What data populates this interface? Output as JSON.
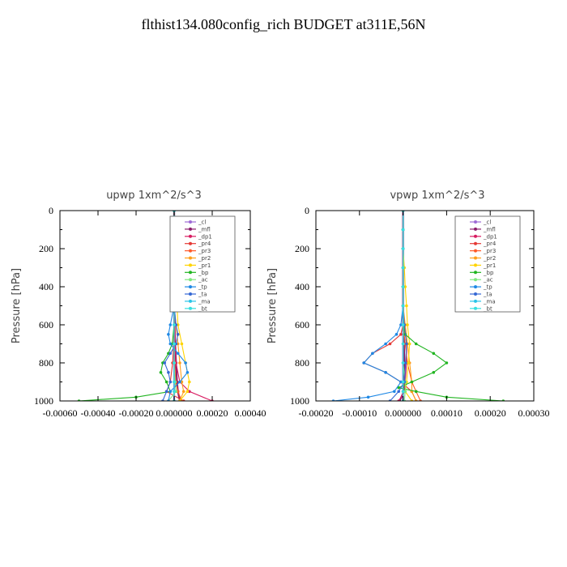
{
  "title": "flthist134.080config_rich  BUDGET at311E,56N",
  "chart_data": [
    {
      "type": "line",
      "title": "upwp   1xm^2/s^3",
      "ylabel": "Pressure [hPa]",
      "xlim": [
        -0.0006,
        0.0004
      ],
      "ylim": [
        1000,
        0
      ],
      "xticks": [
        -0.0006,
        -0.0004,
        -0.0002,
        0.0,
        0.0002,
        0.0004
      ],
      "xtick_labels": [
        "-0.00060",
        "-0.00040",
        "-0.00020",
        "0.000000",
        "0.00020",
        "0.00040"
      ],
      "yticks": [
        0,
        200,
        400,
        600,
        800,
        1000
      ],
      "ytick_labels": [
        "0",
        "200",
        "400",
        "600",
        "800",
        "1000"
      ],
      "legend_position": "top-right",
      "series": [
        {
          "name": "_cl",
          "color": "#9e6bd6",
          "p": [
            0,
            100,
            200,
            300,
            400,
            500,
            600,
            700,
            800,
            900,
            950,
            1000
          ],
          "values": [
            0,
            0,
            0,
            0,
            0,
            0,
            0,
            0,
            0,
            0,
            0,
            0
          ]
        },
        {
          "name": "_mfl",
          "color": "#8b1d6b",
          "p": [
            0,
            100,
            200,
            300,
            400,
            500,
            600,
            700,
            800,
            900,
            950,
            1000
          ],
          "values": [
            0,
            0,
            0,
            0,
            0,
            0,
            2e-06,
            5e-06,
            1e-05,
            1.5e-05,
            2e-05,
            3e-05
          ]
        },
        {
          "name": "_dp1",
          "color": "#d81b60",
          "p": [
            0,
            100,
            200,
            300,
            400,
            500,
            600,
            700,
            800,
            900,
            950,
            1000
          ],
          "values": [
            0,
            0,
            0,
            0,
            0,
            0,
            3e-06,
            5e-06,
            1e-05,
            3e-05,
            8e-05,
            0.0002
          ]
        },
        {
          "name": "_pr4",
          "color": "#e53935",
          "p": [
            0,
            100,
            200,
            300,
            400,
            500,
            600,
            700,
            800,
            900,
            950,
            1000
          ],
          "values": [
            0,
            0,
            0,
            0,
            0,
            0,
            0,
            -3e-06,
            -8e-06,
            -2e-05,
            -4e-05,
            5e-05
          ]
        },
        {
          "name": "_pr3",
          "color": "#ff5a2a",
          "p": [
            0,
            100,
            200,
            300,
            400,
            500,
            600,
            700,
            800,
            900,
            950,
            1000
          ],
          "values": [
            0,
            0,
            0,
            0,
            0,
            0,
            0,
            0,
            3e-06,
            8e-06,
            2e-05,
            4e-05
          ]
        },
        {
          "name": "_pr2",
          "color": "#ff9f1a",
          "p": [
            0,
            100,
            200,
            300,
            400,
            500,
            600,
            700,
            800,
            900,
            950,
            1000
          ],
          "values": [
            0,
            0,
            0,
            0,
            0,
            0,
            1e-05,
            2e-05,
            3e-05,
            4e-05,
            5e-05,
            3e-05
          ]
        },
        {
          "name": "_pr1",
          "color": "#ffd400",
          "p": [
            0,
            100,
            200,
            300,
            400,
            500,
            600,
            700,
            800,
            900,
            950,
            1000
          ],
          "values": [
            0,
            0,
            3e-06,
            5e-06,
            1e-05,
            1.5e-05,
            2e-05,
            4e-05,
            6e-05,
            8e-05,
            7e-05,
            3e-05
          ]
        },
        {
          "name": "_bp",
          "color": "#21b521",
          "p": [
            0,
            100,
            200,
            300,
            400,
            500,
            600,
            700,
            750,
            800,
            850,
            900,
            950,
            980,
            1000
          ],
          "values": [
            0,
            0,
            0,
            0,
            0,
            0,
            0,
            -1e-05,
            -3e-05,
            -6e-05,
            -7e-05,
            -4e-05,
            -2e-05,
            -0.0002,
            -0.0005
          ]
        },
        {
          "name": "_ac",
          "color": "#7ee87e",
          "p": [
            0,
            100,
            200,
            300,
            400,
            500,
            600,
            700,
            800,
            900,
            950,
            1000
          ],
          "values": [
            0,
            0,
            0,
            0,
            0,
            0,
            0,
            0,
            0,
            5e-06,
            1e-05,
            -3e-05
          ]
        },
        {
          "name": "_tp",
          "color": "#1e88e5",
          "p": [
            0,
            100,
            200,
            300,
            400,
            500,
            600,
            650,
            700,
            750,
            800,
            850,
            900,
            950,
            1000
          ],
          "values": [
            0,
            0,
            0,
            0,
            0,
            0,
            -2e-05,
            -3e-05,
            -2e-05,
            2e-05,
            6e-05,
            7e-05,
            3e-05,
            -2e-05,
            -3e-05
          ]
        },
        {
          "name": "_ta",
          "color": "#3568d4",
          "p": [
            0,
            100,
            200,
            300,
            400,
            500,
            600,
            650,
            700,
            750,
            800,
            850,
            900,
            950,
            1000
          ],
          "values": [
            0,
            0,
            0,
            0,
            0,
            0,
            1e-05,
            2e-05,
            1e-05,
            -2e-05,
            -5e-05,
            -3e-05,
            -2e-05,
            -4e-05,
            -6e-05
          ]
        },
        {
          "name": "_ma",
          "color": "#29c4e8",
          "p": [
            0,
            100,
            200,
            300,
            400,
            500,
            600,
            700,
            800,
            900,
            950,
            1000
          ],
          "values": [
            0,
            0,
            0,
            0,
            0,
            0,
            0,
            0,
            0,
            0,
            0,
            0
          ]
        },
        {
          "name": "_bt",
          "color": "#38e0e0",
          "p": [
            0,
            100,
            200,
            300,
            400,
            500,
            600,
            700,
            800,
            900,
            950,
            1000
          ],
          "values": [
            0,
            0,
            0,
            0,
            0,
            0,
            0,
            0,
            0,
            0,
            0,
            0
          ]
        }
      ]
    },
    {
      "type": "line",
      "title": "vpwp   1xm^2/s^3",
      "ylabel": "Pressure [hPa]",
      "xlim": [
        -0.0002,
        0.0003
      ],
      "ylim": [
        1000,
        0
      ],
      "xticks": [
        -0.0002,
        -0.0001,
        0.0,
        0.0001,
        0.0002,
        0.0003
      ],
      "xtick_labels": [
        "-0.00020",
        "-0.00010",
        "0.000000",
        "0.00010",
        "0.00020",
        "0.00030"
      ],
      "yticks": [
        0,
        200,
        400,
        600,
        800,
        1000
      ],
      "ytick_labels": [
        "0",
        "200",
        "400",
        "600",
        "800",
        "1000"
      ],
      "legend_position": "top-right",
      "series": [
        {
          "name": "_cl",
          "color": "#9e6bd6",
          "p": [
            0,
            100,
            200,
            300,
            400,
            500,
            600,
            700,
            800,
            900,
            950,
            1000
          ],
          "values": [
            0,
            0,
            0,
            0,
            0,
            0,
            0,
            0,
            0,
            0,
            0,
            0
          ]
        },
        {
          "name": "_mfl",
          "color": "#8b1d6b",
          "p": [
            0,
            100,
            200,
            300,
            400,
            500,
            600,
            700,
            800,
            900,
            950,
            1000
          ],
          "values": [
            0,
            0,
            0,
            0,
            0,
            0,
            0,
            2e-06,
            3e-06,
            3e-06,
            2e-06,
            -8e-06
          ]
        },
        {
          "name": "_dp1",
          "color": "#d81b60",
          "p": [
            0,
            100,
            200,
            300,
            400,
            500,
            600,
            700,
            800,
            900,
            950,
            1000
          ],
          "values": [
            0,
            0,
            0,
            0,
            0,
            0,
            3e-06,
            8e-06,
            8e-06,
            5e-06,
            3e-06,
            -1e-05
          ]
        },
        {
          "name": "_pr4",
          "color": "#e53935",
          "p": [
            0,
            100,
            200,
            300,
            400,
            500,
            600,
            650,
            700,
            750,
            800,
            850,
            900,
            950,
            1000
          ],
          "values": [
            0,
            0,
            0,
            0,
            0,
            0,
            0,
            -5e-06,
            -3e-05,
            -7e-05,
            -9e-05,
            -4e-05,
            -5e-06,
            2e-05,
            3e-05
          ]
        },
        {
          "name": "_pr3",
          "color": "#ff5a2a",
          "p": [
            0,
            100,
            200,
            300,
            400,
            500,
            600,
            700,
            800,
            900,
            950,
            1000
          ],
          "values": [
            0,
            0,
            0,
            0,
            0,
            0,
            0,
            5e-06,
            1e-05,
            2e-05,
            3e-05,
            4e-05
          ]
        },
        {
          "name": "_pr2",
          "color": "#ff9f1a",
          "p": [
            0,
            100,
            200,
            300,
            400,
            500,
            600,
            700,
            800,
            900,
            950,
            1000
          ],
          "values": [
            0,
            0,
            0,
            0,
            0,
            0,
            5e-06,
            1e-05,
            1.5e-05,
            2e-05,
            2e-05,
            3e-05
          ]
        },
        {
          "name": "_pr1",
          "color": "#ffd400",
          "p": [
            0,
            100,
            200,
            300,
            400,
            500,
            600,
            700,
            800,
            900,
            950,
            1000
          ],
          "values": [
            0,
            0,
            0,
            3e-06,
            5e-06,
            8e-06,
            1e-05,
            1.5e-05,
            1.2e-05,
            8e-06,
            5e-06,
            2e-05
          ]
        },
        {
          "name": "_bp",
          "color": "#21b521",
          "p": [
            0,
            100,
            200,
            300,
            400,
            500,
            600,
            650,
            700,
            750,
            800,
            850,
            900,
            930,
            950,
            980,
            1000
          ],
          "values": [
            0,
            0,
            0,
            0,
            0,
            0,
            0,
            5e-06,
            3e-05,
            7e-05,
            0.0001,
            7e-05,
            2e-05,
            -1e-05,
            3e-05,
            0.0001,
            0.00023
          ]
        },
        {
          "name": "_ac",
          "color": "#7ee87e",
          "p": [
            0,
            100,
            200,
            300,
            400,
            500,
            600,
            700,
            800,
            900,
            950,
            1000
          ],
          "values": [
            0,
            0,
            0,
            0,
            0,
            0,
            0,
            0,
            0,
            5e-06,
            5e-06,
            3e-06
          ]
        },
        {
          "name": "_tp",
          "color": "#1e88e5",
          "p": [
            0,
            100,
            200,
            300,
            400,
            500,
            600,
            650,
            700,
            750,
            800,
            850,
            900,
            950,
            980,
            1000
          ],
          "values": [
            0,
            0,
            0,
            0,
            0,
            0,
            -5e-06,
            -1.5e-05,
            -4e-05,
            -7e-05,
            -9e-05,
            -4e-05,
            -5e-06,
            -2e-05,
            -8e-05,
            -0.00016
          ]
        },
        {
          "name": "_ta",
          "color": "#3568d4",
          "p": [
            0,
            100,
            200,
            300,
            400,
            500,
            600,
            700,
            800,
            900,
            950,
            1000
          ],
          "values": [
            0,
            0,
            0,
            0,
            0,
            0,
            3e-06,
            8e-06,
            6e-06,
            3e-06,
            -1e-05,
            -3e-05
          ]
        },
        {
          "name": "_ma",
          "color": "#29c4e8",
          "p": [
            0,
            100,
            200,
            300,
            400,
            500,
            600,
            700,
            800,
            900,
            950,
            1000
          ],
          "values": [
            0,
            0,
            0,
            0,
            0,
            0,
            0,
            0,
            0,
            0,
            0,
            0
          ]
        },
        {
          "name": "_bt",
          "color": "#38e0e0",
          "p": [
            0,
            100,
            200,
            300,
            400,
            500,
            600,
            700,
            800,
            900,
            950,
            1000
          ],
          "values": [
            0,
            0,
            0,
            0,
            0,
            0,
            0,
            0,
            0,
            0,
            0,
            0
          ]
        }
      ]
    }
  ]
}
